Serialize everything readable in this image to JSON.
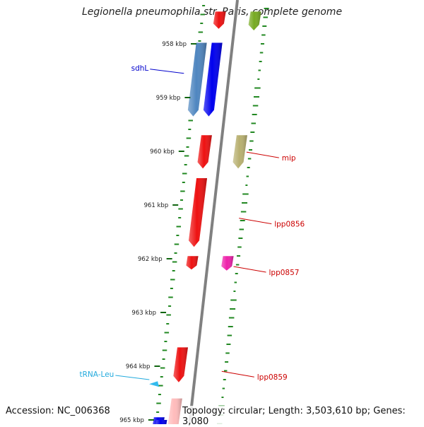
{
  "title": "Legionella pneumophila str. Paris, complete genome",
  "accession": "Accession: NC_006368",
  "summary": "Topology: circular; Length: 3,503,610 bp; Genes: 3,080",
  "ticks": [
    {
      "label": "958 kbp",
      "pos": 958
    },
    {
      "label": "959 kbp",
      "pos": 959
    },
    {
      "label": "960 kbp",
      "pos": 960
    },
    {
      "label": "961 kbp",
      "pos": 961
    },
    {
      "label": "962 kbp",
      "pos": 962
    },
    {
      "label": "963 kbp",
      "pos": 963
    },
    {
      "label": "964 kbp",
      "pos": 964
    },
    {
      "label": "965 kbp",
      "pos": 965
    }
  ],
  "features": [
    {
      "name": "",
      "track": "forward",
      "start": 957.4,
      "end": 957.72,
      "color": "#ee1111"
    },
    {
      "name": "",
      "track": "rev",
      "start": 957.4,
      "end": 957.75,
      "color": "#77aa22"
    },
    {
      "name": "sdhL",
      "track": "ref",
      "start": 957.98,
      "end": 959.35,
      "color": "#4f86c0"
    },
    {
      "name": "",
      "track": "forward",
      "start": 957.98,
      "end": 959.35,
      "color": "#0000ee"
    },
    {
      "name": "mip",
      "track": "rev",
      "start": 959.7,
      "end": 960.32,
      "color": "#b8b070"
    },
    {
      "name": "",
      "track": "forward",
      "start": 959.7,
      "end": 960.32,
      "color": "#ee1111"
    },
    {
      "name": "lpp0856",
      "track": "forward",
      "start": 960.5,
      "end": 961.78,
      "color": "#ee1111"
    },
    {
      "name": "",
      "track": "forward",
      "start": 961.95,
      "end": 962.2,
      "color": "#ee1111"
    },
    {
      "name": "lpp0857",
      "track": "rev",
      "start": 961.95,
      "end": 962.22,
      "color": "#ee22aa"
    },
    {
      "name": "lpp0859",
      "track": "forward",
      "start": 963.65,
      "end": 964.3,
      "color": "#ee1111"
    },
    {
      "name": "tRNA-Leu",
      "track": "trna",
      "start": 964.28,
      "end": 964.38,
      "color": "#33bbee"
    },
    {
      "name": "",
      "track": "forward",
      "start": 964.6,
      "end": 965.2,
      "color": "#ffbbbb"
    },
    {
      "name": "",
      "track": "ref",
      "start": 964.95,
      "end": 965.2,
      "color": "#0000ee"
    },
    {
      "name": "",
      "track": "forward2",
      "start": 965.0,
      "end": 965.2,
      "color": "#0000ee"
    }
  ],
  "labels": [
    {
      "text": "sdhL",
      "color": "#0000cc",
      "side": "left",
      "pos": 958.55
    },
    {
      "text": "mip",
      "color": "#cc0000",
      "side": "right",
      "pos": 960.12
    },
    {
      "text": "lpp0856",
      "color": "#cc0000",
      "side": "right",
      "pos": 961.35
    },
    {
      "text": "lpp0857",
      "color": "#cc0000",
      "side": "right",
      "pos": 962.25
    },
    {
      "text": "lpp0859",
      "color": "#cc0000",
      "side": "right",
      "pos": 964.2
    },
    {
      "text": "tRNA-Leu",
      "color": "#22aadd",
      "side": "left",
      "pos": 964.25
    }
  ],
  "colors": {
    "backbone": "#808080",
    "gc_dots": "#228822",
    "tick_color": "#116611"
  }
}
